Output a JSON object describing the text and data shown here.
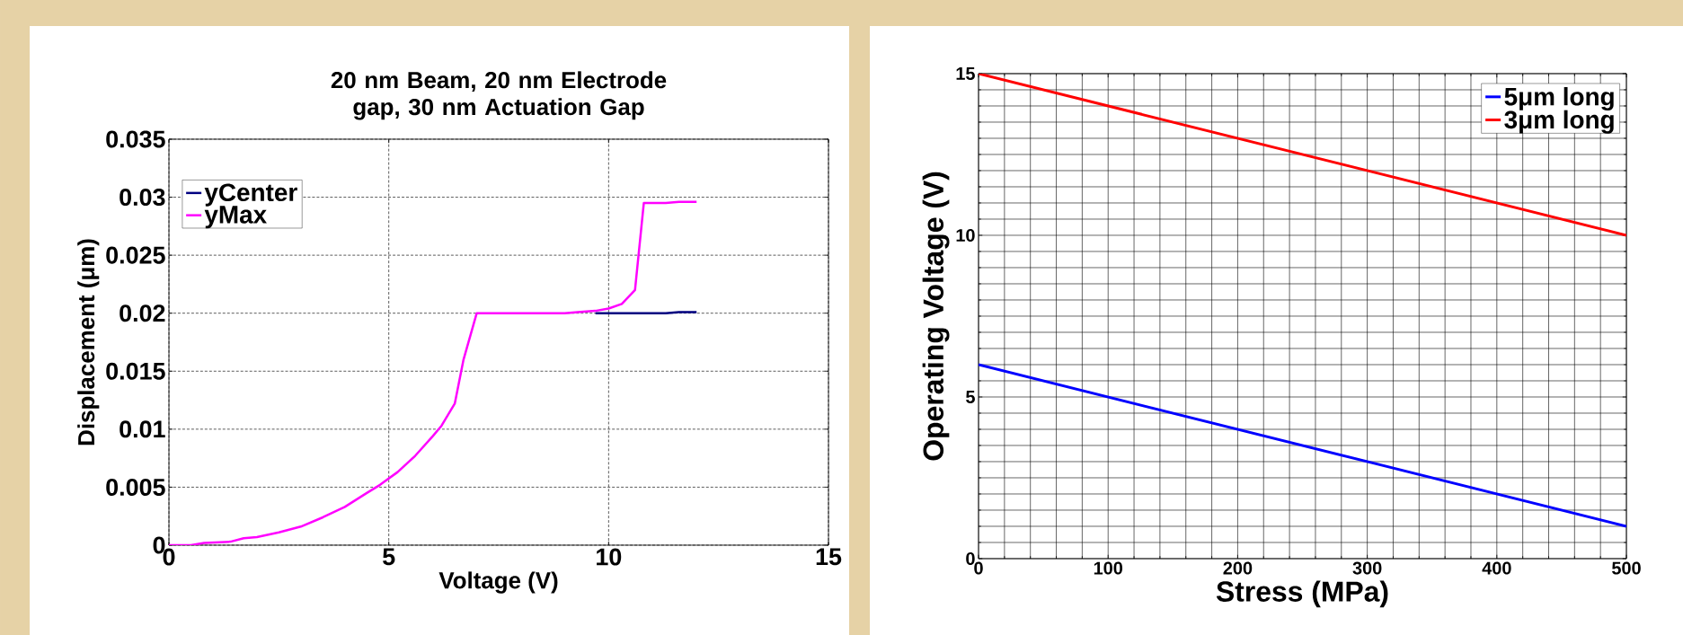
{
  "chart_data": [
    {
      "type": "line",
      "title": "20 nm Beam, 20 nm Electrode gap, 30 nm Actuation Gap",
      "xlabel": "Voltage (V)",
      "ylabel": "Displacement (μm)",
      "xlim": [
        0,
        15
      ],
      "ylim": [
        0,
        0.035
      ],
      "xticks": [
        0,
        5,
        10,
        15
      ],
      "yticks": [
        0,
        0.005,
        0.01,
        0.015,
        0.02,
        0.025,
        0.03,
        0.035
      ],
      "grid": true,
      "legend": "top left",
      "series": [
        {
          "name": "yCenter",
          "color": "#000080",
          "x": [
            9.7,
            10,
            11.3,
            11.6,
            12
          ],
          "values": [
            0.02,
            0.02,
            0.02,
            0.0201,
            0.0201
          ]
        },
        {
          "name": "yMax",
          "color": "#ff00ff",
          "x": [
            0,
            0.5,
            0.8,
            1.4,
            1.7,
            2,
            2.5,
            3,
            3.5,
            4,
            4.5,
            4.8,
            5.2,
            5.6,
            6,
            6.2,
            6.5,
            6.7,
            7,
            9,
            9.3,
            9.7,
            10,
            10.3,
            10.6,
            10.8,
            11.3,
            11.6,
            12
          ],
          "values": [
            0,
            0,
            0.0002,
            0.0003,
            0.0006,
            0.0007,
            0.0011,
            0.0016,
            0.0024,
            0.0033,
            0.0045,
            0.0052,
            0.0063,
            0.0077,
            0.0094,
            0.0103,
            0.0122,
            0.016,
            0.02,
            0.02,
            0.0201,
            0.0202,
            0.0204,
            0.0208,
            0.022,
            0.0295,
            0.0295,
            0.0296,
            0.0296
          ]
        }
      ]
    },
    {
      "type": "line",
      "xlabel": "Stress (MPa)",
      "ylabel": "Operating Voltage (V)",
      "xlim": [
        0,
        500
      ],
      "ylim": [
        0,
        15
      ],
      "xticks": [
        0,
        100,
        200,
        300,
        400,
        500
      ],
      "yticks": [
        0,
        5,
        10,
        15
      ],
      "grid": true,
      "legend": "top right",
      "series": [
        {
          "name": "5μm long",
          "color": "#0000ff",
          "x": [
            0,
            500
          ],
          "values": [
            6,
            1
          ]
        },
        {
          "name": "3μm long",
          "color": "#ff0000",
          "x": [
            0,
            500
          ],
          "values": [
            15,
            10
          ]
        }
      ]
    }
  ]
}
